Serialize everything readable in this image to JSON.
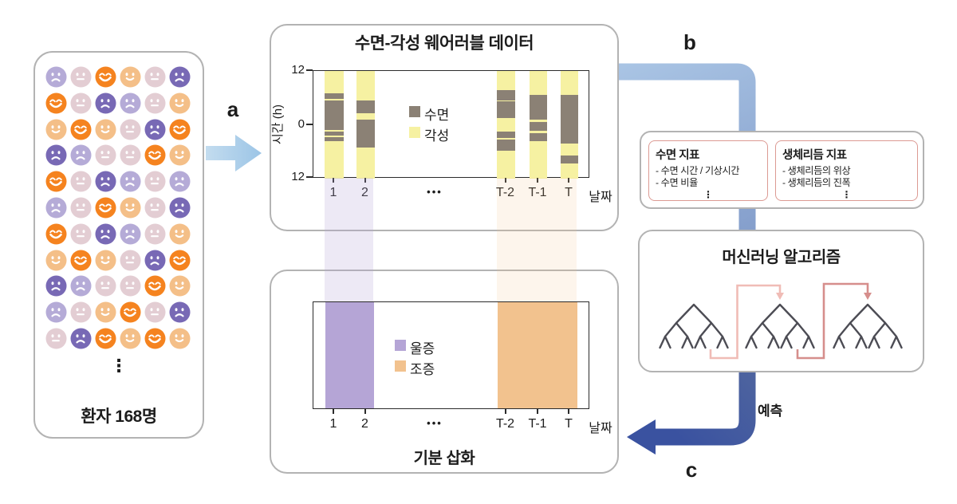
{
  "labels": {
    "step_a": "a",
    "step_b": "b",
    "step_c": "c",
    "prediction": "예측"
  },
  "patients_panel": {
    "label": "환자 168명",
    "ellipsis": "⋮",
    "face_types": {
      "L": {
        "color": "#b5abd7",
        "expression": "sad"
      },
      "P": {
        "color": "#e3cdd3",
        "expression": "neutral"
      },
      "O": {
        "color": "#f5831f",
        "expression": "big-smile"
      },
      "C": {
        "color": "#f4bf88",
        "expression": "smile"
      },
      "D": {
        "color": "#7869b5",
        "expression": "sad"
      }
    },
    "grid": [
      [
        "L",
        "P",
        "O",
        "C",
        "P",
        "D"
      ],
      [
        "O",
        "P",
        "D",
        "L",
        "P",
        "C"
      ],
      [
        "C",
        "O",
        "C",
        "P",
        "D",
        "O"
      ],
      [
        "D",
        "L",
        "P",
        "P",
        "O",
        "C"
      ],
      [
        "O",
        "P",
        "D",
        "L",
        "P",
        "L"
      ],
      [
        "L",
        "P",
        "O",
        "C",
        "P",
        "D"
      ],
      [
        "O",
        "P",
        "D",
        "L",
        "P",
        "C"
      ],
      [
        "C",
        "O",
        "C",
        "P",
        "D",
        "O"
      ],
      [
        "D",
        "L",
        "P",
        "P",
        "O",
        "C"
      ],
      [
        "L",
        "P",
        "C",
        "O",
        "P",
        "D"
      ],
      [
        "P",
        "D",
        "O",
        "C",
        "O",
        "C"
      ]
    ]
  },
  "wearable_panel": {
    "title": "수면-각성 웨어러블 데이터"
  },
  "mood_panel": {
    "title": "기분 삽화",
    "episodes_meta": [
      {
        "label": "울증",
        "connector_color": "rgba(181,165,214,0.24)"
      },
      {
        "label": "조증",
        "connector_color": "rgba(243,198,142,0.17)"
      }
    ]
  },
  "indicator_panel": {
    "sleep_box": {
      "title": "수면 지표",
      "items": [
        "- 수면 시간 / 기상시간",
        "- 수면 비율"
      ],
      "ellipsis": "⋮"
    },
    "circadian_box": {
      "title": "생체리듬 지표",
      "items": [
        "- 생체리듬의 위상",
        "- 생체리듬의 진폭"
      ],
      "ellipsis": "⋮"
    }
  },
  "ml_panel": {
    "title": "머신러닝 알고리즘"
  },
  "colors": {
    "flow_light_blue": "#aacde9",
    "flow_steel_blue": "#7289be",
    "flow_navy": "#3a52a0",
    "tree": "#4c4c54",
    "boost_arrow_1": "#f0bcb6",
    "boost_arrow_2": "#d68e8c",
    "panel_border": "#b3b3b3",
    "indicator_box_border": "#dc9a93",
    "sleep_gray": "#8b8175",
    "wake_yellow": "#f6f1a2",
    "depression_purple": "#b5a5d6",
    "mania_orange": "#f2c28e"
  },
  "chart_data": [
    {
      "id": "sleep_wake_raster",
      "type": "bar",
      "title": "수면-각성 웨어러블 데이터",
      "xlabel": "날짜",
      "ylabel": "시간 (h)",
      "x_tick_labels": [
        "1",
        "2",
        "•••",
        "T-2",
        "T-1",
        "T"
      ],
      "y_tick_labels": [
        "12",
        "0",
        "12"
      ],
      "ylim_hours": [
        12,
        -12
      ],
      "grid": false,
      "legend_position": "center",
      "legend": [
        {
          "label": "수면",
          "color": "#8b8175"
        },
        {
          "label": "각성",
          "color": "#f6f1a2"
        }
      ],
      "series": [
        {
          "day": "1",
          "sleep_intervals_frac": [
            [
              0.21,
              0.26
            ],
            [
              0.275,
              0.55
            ],
            [
              0.565,
              0.6
            ],
            [
              0.615,
              0.655
            ]
          ]
        },
        {
          "day": "2",
          "sleep_intervals_frac": [
            [
              0.275,
              0.39
            ],
            [
              0.455,
              0.71
            ]
          ]
        },
        {
          "day": "T-2",
          "sleep_intervals_frac": [
            [
              0.18,
              0.275
            ],
            [
              0.285,
              0.44
            ],
            [
              0.565,
              0.625
            ],
            [
              0.64,
              0.74
            ]
          ]
        },
        {
          "day": "T-1",
          "sleep_intervals_frac": [
            [
              0.22,
              0.45
            ],
            [
              0.475,
              0.555
            ],
            [
              0.58,
              0.655
            ]
          ]
        },
        {
          "day": "T",
          "sleep_intervals_frac": [
            [
              0.225,
              0.675
            ],
            [
              0.785,
              0.862
            ]
          ]
        }
      ]
    },
    {
      "id": "mood_episode_timeline",
      "type": "area",
      "title": "기분 삽화",
      "xlabel": "날짜",
      "x_tick_labels": [
        "1",
        "2",
        "•••",
        "T-2",
        "T-1",
        "T"
      ],
      "grid": false,
      "legend_position": "center",
      "legend": [
        {
          "label": "울증",
          "color": "#b5a5d6"
        },
        {
          "label": "조증",
          "color": "#f2c28e"
        }
      ],
      "episodes": [
        {
          "label": "울증",
          "days": [
            "1",
            "2"
          ]
        },
        {
          "label": "조증",
          "days": [
            "T-2",
            "T-1",
            "T"
          ]
        }
      ]
    }
  ]
}
